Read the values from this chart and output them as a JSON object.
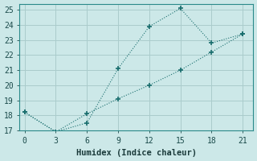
{
  "xlabel": "Humidex (Indice chaleur)",
  "ylabel": "",
  "bg_color": "#cce8e8",
  "grid_color": "#aacccc",
  "line_color": "#1a6e6e",
  "line1_x": [
    0,
    3,
    6,
    9,
    12,
    15,
    18,
    21
  ],
  "line1_y": [
    18.2,
    16.9,
    17.5,
    21.1,
    23.9,
    25.1,
    22.8,
    23.4
  ],
  "line2_x": [
    0,
    3,
    6,
    9,
    12,
    15,
    18,
    21
  ],
  "line2_y": [
    18.2,
    16.9,
    18.1,
    19.1,
    20.0,
    21.0,
    22.2,
    23.4
  ],
  "xlim": [
    -0.5,
    22
  ],
  "ylim": [
    17,
    25.4
  ],
  "xticks": [
    0,
    3,
    6,
    9,
    12,
    15,
    18,
    21
  ],
  "yticks": [
    17,
    18,
    19,
    20,
    21,
    22,
    23,
    24,
    25
  ],
  "tick_fontsize": 7,
  "label_fontsize": 7.5
}
